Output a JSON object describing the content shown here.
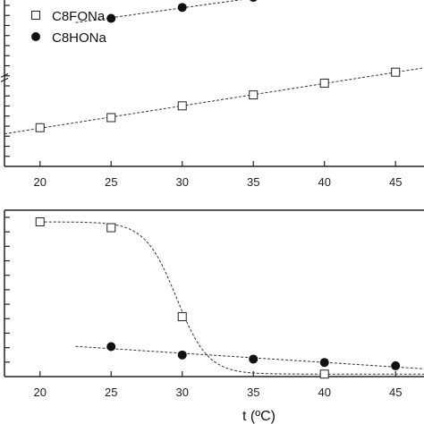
{
  "chart_data": [
    {
      "type": "scatter",
      "panel": "top",
      "xlim": [
        17.5,
        47
      ],
      "x_ticks": [
        "20",
        "25",
        "30",
        "35",
        "40",
        "45"
      ],
      "legend_position": "top-left",
      "series": [
        {
          "name": "C8FONa",
          "marker": "open-square",
          "x": [
            20,
            25,
            30,
            35,
            40,
            45
          ],
          "y": [
            0.77,
            0.71,
            0.64,
            0.575,
            0.505,
            0.44
          ],
          "fit": "linear-dashed"
        },
        {
          "name": "C8HONa",
          "marker": "filled-circle",
          "x": [
            25,
            30,
            35,
            40,
            45
          ],
          "y": [
            0.12,
            0.055,
            -0.005,
            -0.06,
            -0.115
          ],
          "fit": "linear-dashed"
        }
      ],
      "axis_break": true,
      "grid": false
    },
    {
      "type": "scatter",
      "panel": "bottom",
      "xlim": [
        17.5,
        47
      ],
      "x_ticks": [
        "20",
        "25",
        "30",
        "35",
        "40",
        "45"
      ],
      "xlabel": "t (ºC)",
      "series": [
        {
          "marker": "open-square",
          "x": [
            20,
            25,
            30,
            40
          ],
          "y": [
            0.07,
            0.105,
            0.64,
            0.985
          ],
          "fit": "sigmoid-dashed"
        },
        {
          "marker": "filled-circle",
          "x": [
            25,
            30,
            35,
            40,
            45
          ],
          "y": [
            0.82,
            0.87,
            0.895,
            0.915,
            0.935
          ],
          "fit": "linear-dashed"
        }
      ],
      "grid": false
    }
  ]
}
